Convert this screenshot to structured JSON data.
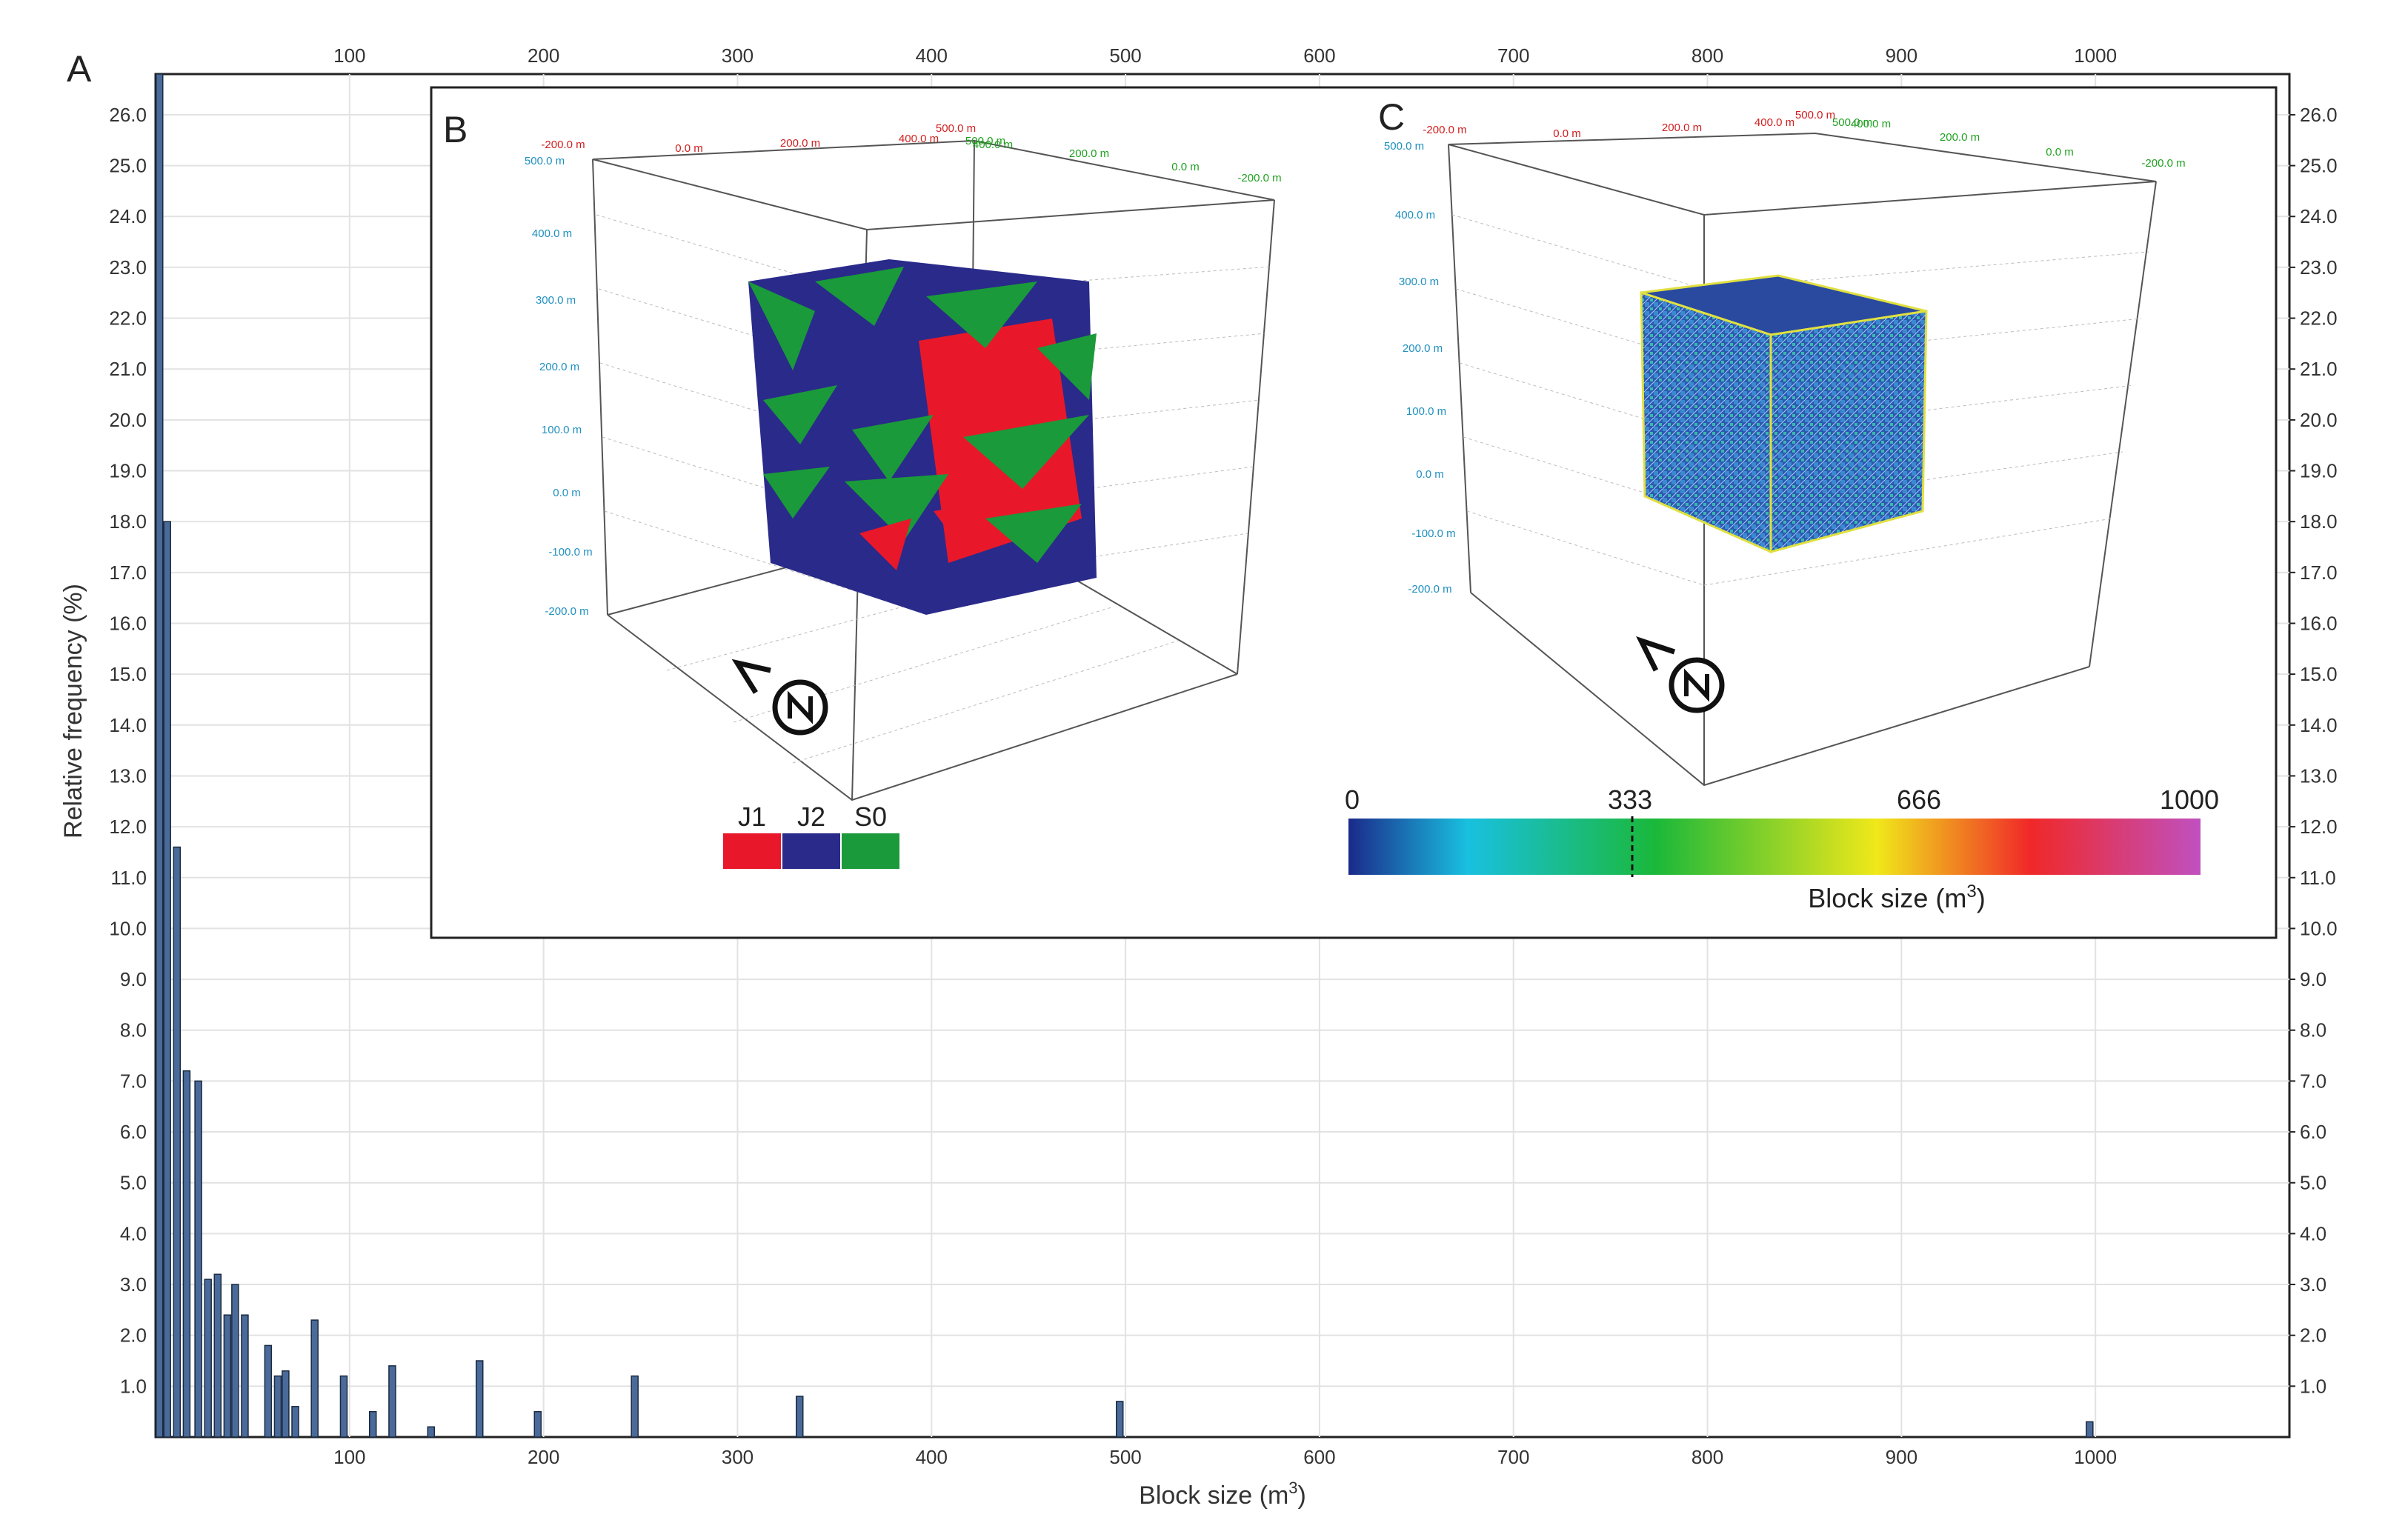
{
  "panels": {
    "a_label": "A",
    "b_label": "B",
    "c_label": "C"
  },
  "chart_data": {
    "type": "bar",
    "xlabel": "Block size (m",
    "xlabel_sup": "3",
    "xlabel_close": ")",
    "ylabel": "Relative frequency (%)",
    "xlim": [
      0,
      1100
    ],
    "ylim": [
      0,
      26.8
    ],
    "x_ticks": [
      100,
      200,
      300,
      400,
      500,
      600,
      700,
      800,
      900,
      1000
    ],
    "y_ticks": [
      "1.0",
      "2.0",
      "3.0",
      "4.0",
      "5.0",
      "6.0",
      "7.0",
      "8.0",
      "9.0",
      "10.0",
      "11.0",
      "12.0",
      "13.0",
      "14.0",
      "15.0",
      "16.0",
      "17.0",
      "18.0",
      "19.0",
      "20.0",
      "21.0",
      "22.0",
      "23.0",
      "24.0",
      "25.0",
      "26.0"
    ],
    "grid": true,
    "bar_color": "#4a6a9a",
    "bars": [
      {
        "x": 2,
        "y": 26.8
      },
      {
        "x": 6,
        "y": 18.0
      },
      {
        "x": 11,
        "y": 11.6
      },
      {
        "x": 16,
        "y": 7.2
      },
      {
        "x": 22,
        "y": 7.0
      },
      {
        "x": 27,
        "y": 3.1
      },
      {
        "x": 32,
        "y": 3.2
      },
      {
        "x": 37,
        "y": 2.4
      },
      {
        "x": 41,
        "y": 3.0
      },
      {
        "x": 46,
        "y": 2.4
      },
      {
        "x": 58,
        "y": 1.8
      },
      {
        "x": 63,
        "y": 1.2
      },
      {
        "x": 67,
        "y": 1.3
      },
      {
        "x": 72,
        "y": 0.6
      },
      {
        "x": 82,
        "y": 2.3
      },
      {
        "x": 97,
        "y": 1.2
      },
      {
        "x": 112,
        "y": 0.5
      },
      {
        "x": 122,
        "y": 1.4
      },
      {
        "x": 142,
        "y": 0.2
      },
      {
        "x": 167,
        "y": 1.5
      },
      {
        "x": 197,
        "y": 0.5
      },
      {
        "x": 247,
        "y": 1.2
      },
      {
        "x": 332,
        "y": 0.8
      },
      {
        "x": 497,
        "y": 0.7
      },
      {
        "x": 997,
        "y": 0.3
      }
    ]
  },
  "inset_b": {
    "legend": [
      "J1",
      "J2",
      "S0"
    ],
    "legend_colors": [
      "#e8182a",
      "#2a2a8a",
      "#1a9a3a"
    ],
    "axis_labels_red": [
      "-200.0 m",
      "0.0 m",
      "200.0 m",
      "400.0 m",
      "500.0 m"
    ],
    "axis_labels_green": [
      "500.0 m",
      "400.0 m",
      "200.0 m",
      "0.0 m",
      "-200.0 m"
    ],
    "axis_labels_blue": [
      "500.0 m",
      "400.0 m",
      "300.0 m",
      "200.0 m",
      "100.0 m",
      "0.0 m",
      "-100.0 m",
      "-200.0 m"
    ]
  },
  "inset_c": {
    "colorbar_ticks": [
      "0",
      "333",
      "666",
      "1000"
    ],
    "colorbar_title": "Block size (m",
    "colorbar_title_sup": "3",
    "colorbar_title_close": ")",
    "colorbar_stops": [
      "#1a2a8a",
      "#19c0e0",
      "#1ab83a",
      "#f0e81a",
      "#f02828",
      "#c050c0"
    ]
  }
}
